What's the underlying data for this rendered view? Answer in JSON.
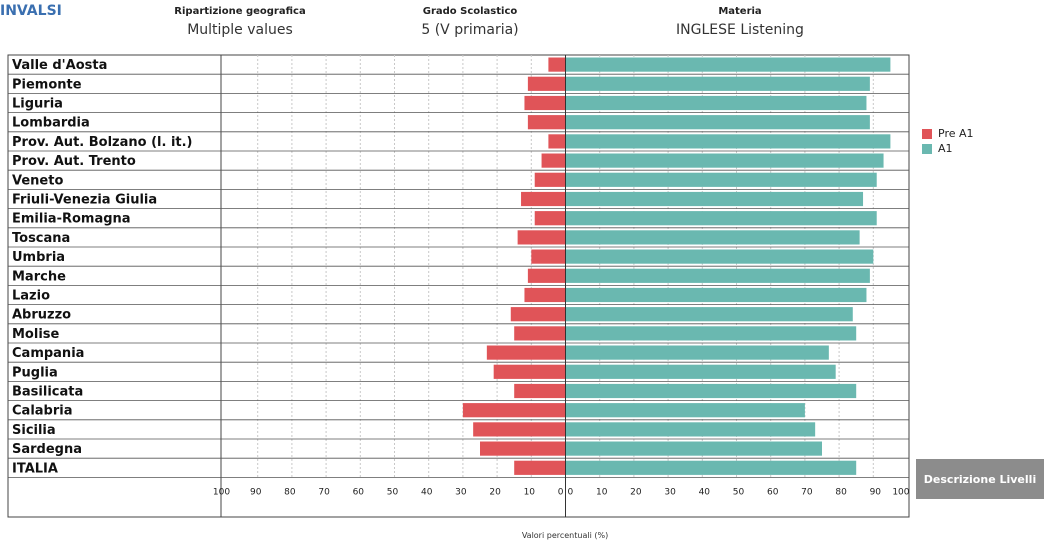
{
  "brand": "INVALSI",
  "filters": {
    "geo": {
      "label": "Ripartizione geografica",
      "value": "Multiple values"
    },
    "grado": {
      "label": "Grado Scolastico",
      "value": "5 (V primaria)"
    },
    "materia": {
      "label": "Materia",
      "value": "INGLESE Listening"
    }
  },
  "legend": [
    {
      "name": "Pre A1",
      "color": "#e05458"
    },
    {
      "name": "A1",
      "color": "#6ab8b0"
    }
  ],
  "button_label": "Descrizione Livelli",
  "chart_data": {
    "type": "bar",
    "orientation": "diverging-horizontal",
    "xlabel": "Valori percentuali (%)",
    "ticks_left": [
      100,
      90,
      80,
      70,
      60,
      50,
      40,
      30,
      20,
      10,
      0
    ],
    "ticks_right": [
      0,
      10,
      20,
      30,
      40,
      50,
      60,
      70,
      80,
      90,
      100
    ],
    "xlim": [
      0,
      100
    ],
    "grid": true,
    "categories": [
      "Valle d'Aosta",
      "Piemonte",
      "Liguria",
      "Lombardia",
      "Prov. Aut. Bolzano (l. it.)",
      "Prov. Aut. Trento",
      "Veneto",
      "Friuli-Venezia Giulia",
      "Emilia-Romagna",
      "Toscana",
      "Umbria",
      "Marche",
      "Lazio",
      "Abruzzo",
      "Molise",
      "Campania",
      "Puglia",
      "Basilicata",
      "Calabria",
      "Sicilia",
      "Sardegna",
      "ITALIA"
    ],
    "series": [
      {
        "name": "Pre A1",
        "values": [
          5,
          11,
          12,
          11,
          5,
          7,
          9,
          13,
          9,
          14,
          10,
          11,
          12,
          16,
          15,
          23,
          21,
          15,
          30,
          27,
          25,
          15
        ]
      },
      {
        "name": "A1",
        "values": [
          95,
          89,
          88,
          89,
          95,
          93,
          91,
          87,
          91,
          86,
          90,
          89,
          88,
          84,
          85,
          77,
          79,
          85,
          70,
          73,
          75,
          85
        ]
      }
    ]
  }
}
